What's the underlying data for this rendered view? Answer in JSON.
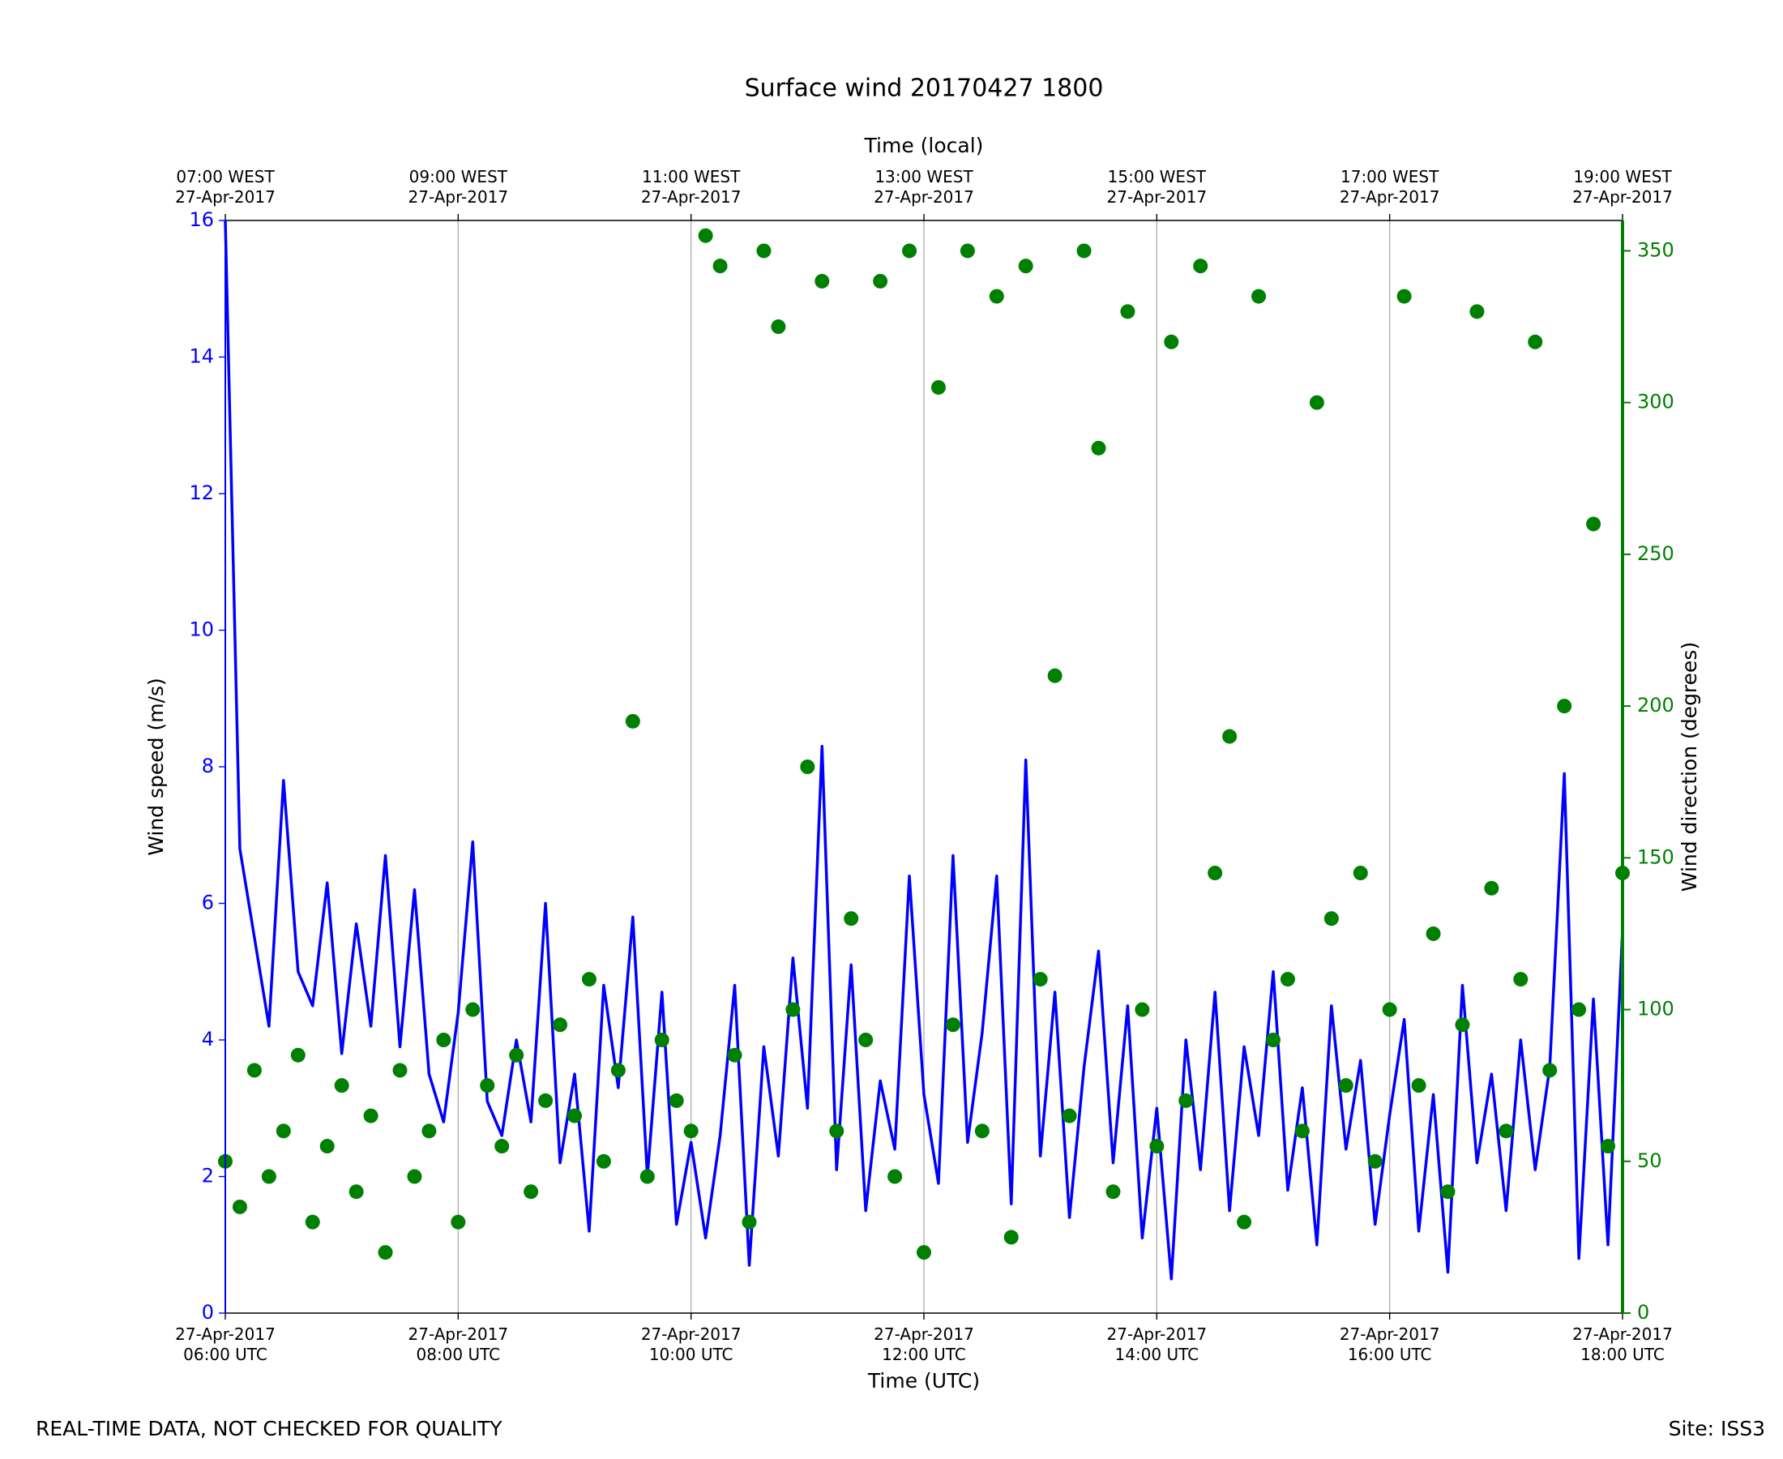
{
  "chart_data": {
    "type": "line",
    "title": "Surface wind 20170427 1800",
    "xlabel": "Time (UTC)",
    "x2label": "Time (local)",
    "ylabel": "Wind speed (m/s)",
    "y2label": "Wind direction (degrees)",
    "footer_left": "REAL-TIME DATA, NOT CHECKED FOR QUALITY",
    "footer_right": "Site: ISS3",
    "grid": true,
    "x": [
      6,
      6.125,
      6.25,
      6.375,
      6.5,
      6.625,
      6.75,
      6.875,
      7,
      7.125,
      7.25,
      7.375,
      7.5,
      7.625,
      7.75,
      7.875,
      8,
      8.125,
      8.25,
      8.375,
      8.5,
      8.625,
      8.75,
      8.875,
      9,
      9.125,
      9.25,
      9.375,
      9.5,
      9.625,
      9.75,
      9.875,
      10,
      10.125,
      10.25,
      10.375,
      10.5,
      10.625,
      10.75,
      10.875,
      11,
      11.125,
      11.25,
      11.375,
      11.5,
      11.625,
      11.75,
      11.875,
      12,
      12.125,
      12.25,
      12.375,
      12.5,
      12.625,
      12.75,
      12.875,
      13,
      13.125,
      13.25,
      13.375,
      13.5,
      13.625,
      13.75,
      13.875,
      14,
      14.125,
      14.25,
      14.375,
      14.5,
      14.625,
      14.75,
      14.875,
      15,
      15.125,
      15.25,
      15.375,
      15.5,
      15.625,
      15.75,
      15.875,
      16,
      16.125,
      16.25,
      16.375,
      16.5,
      16.625,
      16.75,
      16.875,
      17,
      17.125,
      17.25,
      17.375,
      17.5,
      17.625,
      17.75,
      17.875,
      18
    ],
    "series": [
      {
        "type": "line",
        "color": "#0000ff",
        "values": [
          16,
          6.8,
          5.5,
          4.2,
          7.8,
          5.0,
          4.5,
          6.3,
          3.8,
          5.7,
          4.2,
          6.7,
          3.9,
          6.2,
          3.5,
          2.8,
          4.4,
          6.9,
          3.1,
          2.6,
          4.0,
          2.8,
          6.0,
          2.2,
          3.5,
          1.2,
          4.8,
          3.3,
          5.8,
          2.0,
          4.7,
          1.3,
          2.5,
          1.1,
          2.6,
          4.8,
          0.7,
          3.9,
          2.3,
          5.2,
          3.0,
          8.3,
          2.1,
          5.1,
          1.5,
          3.4,
          2.4,
          6.4,
          3.2,
          1.9,
          6.7,
          2.5,
          4.1,
          6.4,
          1.6,
          8.1,
          2.3,
          4.7,
          1.4,
          3.6,
          5.3,
          2.2,
          4.5,
          1.1,
          3.0,
          0.5,
          4.0,
          2.1,
          4.7,
          1.5,
          3.9,
          2.6,
          5.0,
          1.8,
          3.3,
          1.0,
          4.5,
          2.4,
          3.7,
          1.3,
          2.9,
          4.3,
          1.2,
          3.2,
          0.6,
          4.8,
          2.2,
          3.5,
          1.5,
          4.0,
          2.1,
          3.6,
          7.9,
          0.8,
          4.6,
          1.0,
          5.6
        ]
      },
      {
        "type": "scatter",
        "axis": "y2",
        "color": "#008000",
        "values": [
          50,
          35,
          80,
          45,
          60,
          85,
          30,
          55,
          75,
          40,
          65,
          20,
          80,
          45,
          60,
          90,
          30,
          100,
          75,
          55,
          85,
          40,
          70,
          95,
          65,
          110,
          50,
          80,
          195,
          45,
          90,
          70,
          60,
          355,
          345,
          85,
          30,
          350,
          325,
          100,
          180,
          340,
          60,
          130,
          90,
          340,
          45,
          350,
          20,
          305,
          95,
          350,
          60,
          335,
          25,
          345,
          110,
          210,
          65,
          350,
          285,
          40,
          330,
          100,
          55,
          320,
          70,
          345,
          145,
          190,
          30,
          335,
          90,
          110,
          60,
          300,
          130,
          75,
          145,
          50,
          100,
          335,
          75,
          125,
          40,
          95,
          330,
          140,
          60,
          110,
          320,
          80,
          200,
          100,
          260,
          55,
          145
        ]
      }
    ],
    "xlim": [
      6,
      18
    ],
    "xticks": [
      {
        "value": 6,
        "label": "27-Apr-2017\n06:00 UTC"
      },
      {
        "value": 8,
        "label": "27-Apr-2017\n08:00 UTC"
      },
      {
        "value": 10,
        "label": "27-Apr-2017\n10:00 UTC"
      },
      {
        "value": 12,
        "label": "27-Apr-2017\n12:00 UTC"
      },
      {
        "value": 14,
        "label": "27-Apr-2017\n14:00 UTC"
      },
      {
        "value": 16,
        "label": "27-Apr-2017\n16:00 UTC"
      },
      {
        "value": 18,
        "label": "27-Apr-2017\n18:00 UTC"
      }
    ],
    "x2ticks": [
      {
        "value": 6,
        "label": "07:00 WEST\n27-Apr-2017"
      },
      {
        "value": 8,
        "label": "09:00 WEST\n27-Apr-2017"
      },
      {
        "value": 10,
        "label": "11:00 WEST\n27-Apr-2017"
      },
      {
        "value": 12,
        "label": "13:00 WEST\n27-Apr-2017"
      },
      {
        "value": 14,
        "label": "15:00 WEST\n27-Apr-2017"
      },
      {
        "value": 16,
        "label": "17:00 WEST\n27-Apr-2017"
      },
      {
        "value": 18,
        "label": "19:00 WEST\n27-Apr-2017"
      }
    ],
    "ylim": [
      0,
      16
    ],
    "yticks": [
      0,
      2,
      4,
      6,
      8,
      10,
      12,
      14,
      16
    ],
    "y_color": "#0000ff",
    "y2lim": [
      0,
      360
    ],
    "y2ticks": [
      0,
      50,
      100,
      150,
      200,
      250,
      300,
      350
    ],
    "y2_color": "#008000"
  }
}
